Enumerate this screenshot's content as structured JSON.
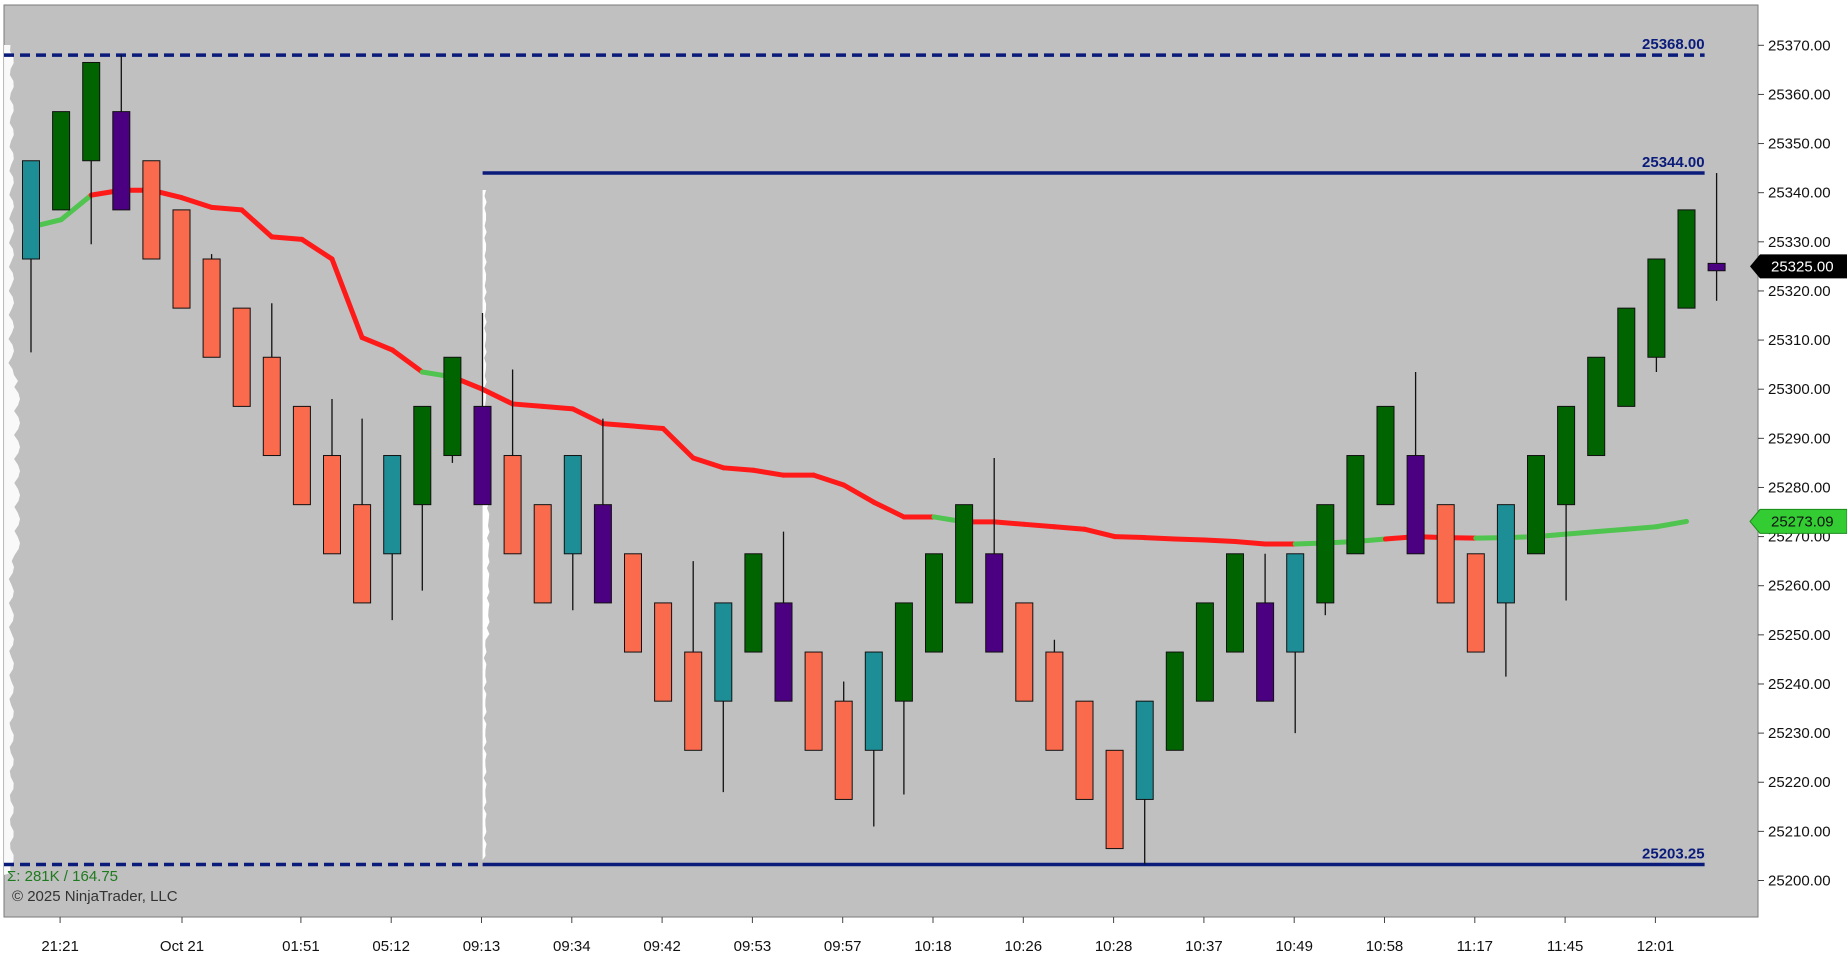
{
  "chart_data": {
    "type": "candlestick",
    "title": "",
    "xlabel": "",
    "ylabel": "",
    "ylim": [
      25195,
      25374
    ],
    "y_ticks": [
      25200,
      25210,
      25220,
      25230,
      25240,
      25250,
      25260,
      25270,
      25280,
      25290,
      25300,
      25310,
      25320,
      25330,
      25340,
      25350,
      25360,
      25370
    ],
    "y_tick_labels": [
      "25200.00",
      "25210.00",
      "25220.00",
      "25230.00",
      "25240.00",
      "25250.00",
      "25260.00",
      "25270.00",
      "25280.00",
      "25290.00",
      "25300.00",
      "25310.00",
      "25320.00",
      "25330.00",
      "25340.00",
      "25350.00",
      "25360.00",
      "25370.00"
    ],
    "grid": false,
    "x_tick_labels": [
      {
        "bar": 1,
        "label": "21:21"
      },
      {
        "bar": 5,
        "label": "Oct 21"
      },
      {
        "bar": 9,
        "label": "01:51"
      },
      {
        "bar": 12,
        "label": "05:12"
      },
      {
        "bar": 15,
        "label": "09:13"
      },
      {
        "bar": 18,
        "label": "09:34"
      },
      {
        "bar": 21,
        "label": "09:42"
      },
      {
        "bar": 24,
        "label": "09:53"
      },
      {
        "bar": 27,
        "label": "09:57"
      },
      {
        "bar": 30,
        "label": "10:18"
      },
      {
        "bar": 33,
        "label": "10:26"
      },
      {
        "bar": 36,
        "label": "10:28"
      },
      {
        "bar": 39,
        "label": "10:37"
      },
      {
        "bar": 42,
        "label": "10:49"
      },
      {
        "bar": 45,
        "label": "10:58"
      },
      {
        "bar": 48,
        "label": "11:17"
      },
      {
        "bar": 51,
        "label": "11:45"
      },
      {
        "bar": 54,
        "label": "12:01"
      }
    ],
    "bars": [
      {
        "o": 25326.5,
        "h": 25346.5,
        "l": 25307.5,
        "c": 25346.5,
        "color": "#1e8e96"
      },
      {
        "o": 25336.5,
        "h": 25356.5,
        "l": 25336.5,
        "c": 25356.5,
        "color": "#006400"
      },
      {
        "o": 25346.5,
        "h": 25366.5,
        "l": 25329.5,
        "c": 25366.5,
        "color": "#006400"
      },
      {
        "o": 25356.5,
        "h": 25368,
        "l": 25336.5,
        "c": 25336.5,
        "color": "#4b0082"
      },
      {
        "o": 25346.5,
        "h": 25346.5,
        "l": 25326.5,
        "c": 25326.5,
        "color": "#fa6a4c"
      },
      {
        "o": 25336.5,
        "h": 25336.5,
        "l": 25316.5,
        "c": 25316.5,
        "color": "#fa6a4c"
      },
      {
        "o": 25326.5,
        "h": 25327.5,
        "l": 25306.5,
        "c": 25306.5,
        "color": "#fa6a4c"
      },
      {
        "o": 25316.5,
        "h": 25316.5,
        "l": 25296.5,
        "c": 25296.5,
        "color": "#fa6a4c"
      },
      {
        "o": 25306.5,
        "h": 25317.5,
        "l": 25286.5,
        "c": 25286.5,
        "color": "#fa6a4c"
      },
      {
        "o": 25296.5,
        "h": 25296.5,
        "l": 25276.5,
        "c": 25276.5,
        "color": "#fa6a4c"
      },
      {
        "o": 25286.5,
        "h": 25298,
        "l": 25266.5,
        "c": 25266.5,
        "color": "#fa6a4c"
      },
      {
        "o": 25276.5,
        "h": 25294,
        "l": 25256.5,
        "c": 25256.5,
        "color": "#fa6a4c"
      },
      {
        "o": 25266.5,
        "h": 25286.5,
        "l": 25253,
        "c": 25286.5,
        "color": "#1e8e96"
      },
      {
        "o": 25276.5,
        "h": 25296.5,
        "l": 25259,
        "c": 25296.5,
        "color": "#006400"
      },
      {
        "o": 25286.5,
        "h": 25306.5,
        "l": 25285,
        "c": 25306.5,
        "color": "#006400"
      },
      {
        "o": 25296.5,
        "h": 25315.5,
        "l": 25276.5,
        "c": 25276.5,
        "color": "#4b0082"
      },
      {
        "o": 25286.5,
        "h": 25304,
        "l": 25266.5,
        "c": 25266.5,
        "color": "#fa6a4c"
      },
      {
        "o": 25276.5,
        "h": 25276.5,
        "l": 25256.5,
        "c": 25256.5,
        "color": "#fa6a4c"
      },
      {
        "o": 25266.5,
        "h": 25286.5,
        "l": 25255,
        "c": 25286.5,
        "color": "#1e8e96"
      },
      {
        "o": 25276.5,
        "h": 25294,
        "l": 25256.5,
        "c": 25256.5,
        "color": "#4b0082"
      },
      {
        "o": 25266.5,
        "h": 25266.5,
        "l": 25246.5,
        "c": 25246.5,
        "color": "#fa6a4c"
      },
      {
        "o": 25256.5,
        "h": 25256.5,
        "l": 25236.5,
        "c": 25236.5,
        "color": "#fa6a4c"
      },
      {
        "o": 25246.5,
        "h": 25265,
        "l": 25226.5,
        "c": 25226.5,
        "color": "#fa6a4c"
      },
      {
        "o": 25236.5,
        "h": 25256.5,
        "l": 25218,
        "c": 25256.5,
        "color": "#1e8e96"
      },
      {
        "o": 25246.5,
        "h": 25266.5,
        "l": 25246.5,
        "c": 25266.5,
        "color": "#006400"
      },
      {
        "o": 25256.5,
        "h": 25271,
        "l": 25236.5,
        "c": 25236.5,
        "color": "#4b0082"
      },
      {
        "o": 25246.5,
        "h": 25246.5,
        "l": 25226.5,
        "c": 25226.5,
        "color": "#fa6a4c"
      },
      {
        "o": 25236.5,
        "h": 25240.5,
        "l": 25216.5,
        "c": 25216.5,
        "color": "#fa6a4c"
      },
      {
        "o": 25226.5,
        "h": 25246.5,
        "l": 25211,
        "c": 25246.5,
        "color": "#1e8e96"
      },
      {
        "o": 25236.5,
        "h": 25256.5,
        "l": 25217.5,
        "c": 25256.5,
        "color": "#006400"
      },
      {
        "o": 25246.5,
        "h": 25266.5,
        "l": 25246.5,
        "c": 25266.5,
        "color": "#006400"
      },
      {
        "o": 25256.5,
        "h": 25276.5,
        "l": 25256.5,
        "c": 25276.5,
        "color": "#006400"
      },
      {
        "o": 25266.5,
        "h": 25286,
        "l": 25246.5,
        "c": 25246.5,
        "color": "#4b0082"
      },
      {
        "o": 25256.5,
        "h": 25256.5,
        "l": 25236.5,
        "c": 25236.5,
        "color": "#fa6a4c"
      },
      {
        "o": 25246.5,
        "h": 25249,
        "l": 25226.5,
        "c": 25226.5,
        "color": "#fa6a4c"
      },
      {
        "o": 25236.5,
        "h": 25236.5,
        "l": 25216.5,
        "c": 25216.5,
        "color": "#fa6a4c"
      },
      {
        "o": 25226.5,
        "h": 25226.5,
        "l": 25206.5,
        "c": 25206.5,
        "color": "#fa6a4c"
      },
      {
        "o": 25216.5,
        "h": 25236.5,
        "l": 25203.25,
        "c": 25236.5,
        "color": "#1e8e96"
      },
      {
        "o": 25226.5,
        "h": 25246.5,
        "l": 25226.5,
        "c": 25246.5,
        "color": "#006400"
      },
      {
        "o": 25236.5,
        "h": 25256.5,
        "l": 25236.5,
        "c": 25256.5,
        "color": "#006400"
      },
      {
        "o": 25246.5,
        "h": 25266.5,
        "l": 25246.5,
        "c": 25266.5,
        "color": "#006400"
      },
      {
        "o": 25256.5,
        "h": 25266.5,
        "l": 25236.5,
        "c": 25236.5,
        "color": "#4b0082"
      },
      {
        "o": 25246.5,
        "h": 25266.5,
        "l": 25230,
        "c": 25266.5,
        "color": "#1e8e96"
      },
      {
        "o": 25256.5,
        "h": 25276.5,
        "l": 25254,
        "c": 25276.5,
        "color": "#006400"
      },
      {
        "o": 25266.5,
        "h": 25286.5,
        "l": 25266.5,
        "c": 25286.5,
        "color": "#006400"
      },
      {
        "o": 25276.5,
        "h": 25296.5,
        "l": 25276.5,
        "c": 25296.5,
        "color": "#006400"
      },
      {
        "o": 25286.5,
        "h": 25303.5,
        "l": 25266.5,
        "c": 25266.5,
        "color": "#4b0082"
      },
      {
        "o": 25276.5,
        "h": 25276.5,
        "l": 25256.5,
        "c": 25256.5,
        "color": "#fa6a4c"
      },
      {
        "o": 25266.5,
        "h": 25266.5,
        "l": 25246.5,
        "c": 25246.5,
        "color": "#fa6a4c"
      },
      {
        "o": 25256.5,
        "h": 25276.5,
        "l": 25241.5,
        "c": 25276.5,
        "color": "#1e8e96"
      },
      {
        "o": 25266.5,
        "h": 25286.5,
        "l": 25266.5,
        "c": 25286.5,
        "color": "#006400"
      },
      {
        "o": 25276.5,
        "h": 25296.5,
        "l": 25257,
        "c": 25296.5,
        "color": "#006400"
      },
      {
        "o": 25286.5,
        "h": 25306.5,
        "l": 25286.5,
        "c": 25306.5,
        "color": "#006400"
      },
      {
        "o": 25296.5,
        "h": 25316.5,
        "l": 25296.5,
        "c": 25316.5,
        "color": "#006400"
      },
      {
        "o": 25306.5,
        "h": 25326.5,
        "l": 25303.5,
        "c": 25326.5,
        "color": "#006400"
      },
      {
        "o": 25316.5,
        "h": 25336.5,
        "l": 25316.5,
        "c": 25336.5,
        "color": "#006400"
      },
      {
        "o": 25326.5,
        "h": 25344,
        "l": 25318,
        "c": 25325,
        "color": "#4b0082"
      }
    ],
    "moving_average": {
      "values": [
        25333,
        25334.5,
        25339.5,
        25340.5,
        25340.5,
        25339,
        25337,
        25336.5,
        25331,
        25330.5,
        25326.5,
        25310.5,
        25308,
        25303.5,
        25302.5,
        25300,
        25297,
        25296.5,
        25296,
        25293,
        25292.5,
        25292,
        25286,
        25284,
        25283.5,
        25282.5,
        25282.5,
        25280.5,
        25277,
        25274,
        25274,
        25273,
        25273,
        25272.5,
        25272,
        25271.5,
        25270,
        25269.8,
        25269.5,
        25269.3,
        25269,
        25268.5,
        25268.5,
        25268.7,
        25269,
        25269.5,
        25270,
        25269.8,
        25269.7,
        25269.8,
        25270,
        25270.5,
        25271,
        25271.5,
        25272,
        25273.09
      ],
      "segment_colors": [
        "#4fc44f",
        "#4fc44f",
        "#ff1a1a",
        "#ff1a1a",
        "#ff1a1a",
        "#ff1a1a",
        "#ff1a1a",
        "#ff1a1a",
        "#ff1a1a",
        "#ff1a1a",
        "#ff1a1a",
        "#ff1a1a",
        "#ff1a1a",
        "#4fc44f",
        "#ff1a1a",
        "#ff1a1a",
        "#ff1a1a",
        "#ff1a1a",
        "#ff1a1a",
        "#ff1a1a",
        "#ff1a1a",
        "#ff1a1a",
        "#ff1a1a",
        "#ff1a1a",
        "#ff1a1a",
        "#ff1a1a",
        "#ff1a1a",
        "#ff1a1a",
        "#ff1a1a",
        "#ff1a1a",
        "#4fc44f",
        "#ff1a1a",
        "#ff1a1a",
        "#ff1a1a",
        "#ff1a1a",
        "#ff1a1a",
        "#ff1a1a",
        "#ff1a1a",
        "#ff1a1a",
        "#ff1a1a",
        "#ff1a1a",
        "#ff1a1a",
        "#4fc44f",
        "#4fc44f",
        "#4fc44f",
        "#ff1a1a",
        "#ff1a1a",
        "#ff1a1a",
        "#4fc44f",
        "#4fc44f",
        "#4fc44f",
        "#4fc44f",
        "#4fc44f",
        "#4fc44f",
        "#4fc44f",
        "#4fc44f"
      ],
      "last_value_label": "25273.09",
      "label_color": "#33cc33"
    },
    "horizontal_lines": [
      {
        "value": 25368,
        "label": "25368.00",
        "style": "dashed",
        "color": "#0a1b7a"
      },
      {
        "value": 25344,
        "label": "25344.00",
        "style": "solid",
        "color": "#0a1b7a",
        "from_bar": 16
      },
      {
        "value": 25203.25,
        "label": "25203.25",
        "style": "dashed-then-solid",
        "color": "#0a1b7a",
        "from_bar": 16
      }
    ],
    "last_price": {
      "value": 25325,
      "label": "25325.00"
    },
    "summary_text": "Σ: 281K / 164.75",
    "copyright": "© 2025 NinjaTrader, LLC",
    "colors": {
      "background": "#c0c0c0",
      "axis_background": "#ffffff",
      "bull": "#006400",
      "bear": "#fa6a4c",
      "reversal_up": "#1e8e96",
      "reversal_down": "#4b0082",
      "level_line": "#0a1b7a",
      "summary": "#1e7a1e"
    }
  }
}
